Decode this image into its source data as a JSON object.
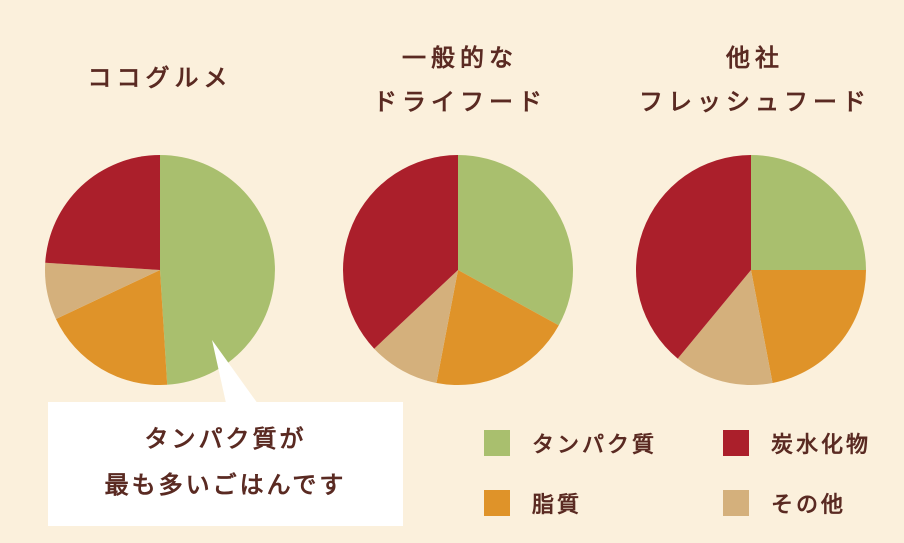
{
  "chart_data": [
    {
      "type": "pie",
      "title": "ココグルメ",
      "categories": [
        "タンパク質",
        "脂質",
        "その他",
        "炭水化物"
      ],
      "values": [
        49,
        19,
        8,
        24
      ],
      "colors": [
        "#a9bf6e",
        "#df9329",
        "#d4b07c",
        "#ab1f2b"
      ]
    },
    {
      "type": "pie",
      "title_lines": [
        "一般的な",
        "ドライフード"
      ],
      "categories": [
        "タンパク質",
        "脂質",
        "その他",
        "炭水化物"
      ],
      "values": [
        33,
        20,
        10,
        37
      ],
      "colors": [
        "#a9bf6e",
        "#df9329",
        "#d4b07c",
        "#ab1f2b"
      ]
    },
    {
      "type": "pie",
      "title_lines": [
        "他社",
        "フレッシュフード"
      ],
      "categories": [
        "タンパク質",
        "脂質",
        "その他",
        "炭水化物"
      ],
      "values": [
        25,
        22,
        14,
        39
      ],
      "colors": [
        "#a9bf6e",
        "#df9329",
        "#d4b07c",
        "#ab1f2b"
      ]
    }
  ],
  "callout": {
    "lines": [
      "タンパク質が",
      "最も多いごはんです"
    ]
  },
  "legend": [
    {
      "label": "タンパク質",
      "color": "#a9bf6e"
    },
    {
      "label": "炭水化物",
      "color": "#ab1f2b"
    },
    {
      "label": "脂質",
      "color": "#df9329"
    },
    {
      "label": "その他",
      "color": "#d4b07c"
    }
  ]
}
